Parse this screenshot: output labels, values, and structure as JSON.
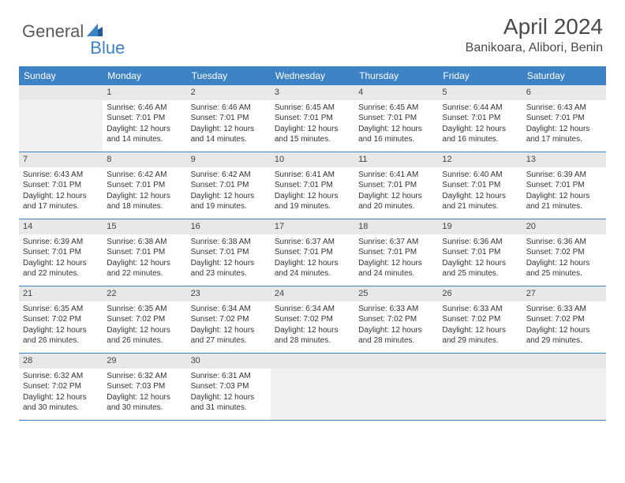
{
  "logo": {
    "word1": "General",
    "word2": "Blue"
  },
  "title": "April 2024",
  "location": "Banikoara, Alibori, Benin",
  "weekdays": [
    "Sunday",
    "Monday",
    "Tuesday",
    "Wednesday",
    "Thursday",
    "Friday",
    "Saturday"
  ],
  "colors": {
    "header_bg": "#3d82c4",
    "header_text": "#ffffff",
    "daynum_bg": "#e8e8e8",
    "border": "#3d82c4",
    "logo_accent": "#3d82c4"
  },
  "weeks": [
    [
      {
        "day": "",
        "empty": true
      },
      {
        "day": "1",
        "sunrise": "Sunrise: 6:46 AM",
        "sunset": "Sunset: 7:01 PM",
        "daylight": "Daylight: 12 hours and 14 minutes."
      },
      {
        "day": "2",
        "sunrise": "Sunrise: 6:46 AM",
        "sunset": "Sunset: 7:01 PM",
        "daylight": "Daylight: 12 hours and 14 minutes."
      },
      {
        "day": "3",
        "sunrise": "Sunrise: 6:45 AM",
        "sunset": "Sunset: 7:01 PM",
        "daylight": "Daylight: 12 hours and 15 minutes."
      },
      {
        "day": "4",
        "sunrise": "Sunrise: 6:45 AM",
        "sunset": "Sunset: 7:01 PM",
        "daylight": "Daylight: 12 hours and 16 minutes."
      },
      {
        "day": "5",
        "sunrise": "Sunrise: 6:44 AM",
        "sunset": "Sunset: 7:01 PM",
        "daylight": "Daylight: 12 hours and 16 minutes."
      },
      {
        "day": "6",
        "sunrise": "Sunrise: 6:43 AM",
        "sunset": "Sunset: 7:01 PM",
        "daylight": "Daylight: 12 hours and 17 minutes."
      }
    ],
    [
      {
        "day": "7",
        "sunrise": "Sunrise: 6:43 AM",
        "sunset": "Sunset: 7:01 PM",
        "daylight": "Daylight: 12 hours and 17 minutes."
      },
      {
        "day": "8",
        "sunrise": "Sunrise: 6:42 AM",
        "sunset": "Sunset: 7:01 PM",
        "daylight": "Daylight: 12 hours and 18 minutes."
      },
      {
        "day": "9",
        "sunrise": "Sunrise: 6:42 AM",
        "sunset": "Sunset: 7:01 PM",
        "daylight": "Daylight: 12 hours and 19 minutes."
      },
      {
        "day": "10",
        "sunrise": "Sunrise: 6:41 AM",
        "sunset": "Sunset: 7:01 PM",
        "daylight": "Daylight: 12 hours and 19 minutes."
      },
      {
        "day": "11",
        "sunrise": "Sunrise: 6:41 AM",
        "sunset": "Sunset: 7:01 PM",
        "daylight": "Daylight: 12 hours and 20 minutes."
      },
      {
        "day": "12",
        "sunrise": "Sunrise: 6:40 AM",
        "sunset": "Sunset: 7:01 PM",
        "daylight": "Daylight: 12 hours and 21 minutes."
      },
      {
        "day": "13",
        "sunrise": "Sunrise: 6:39 AM",
        "sunset": "Sunset: 7:01 PM",
        "daylight": "Daylight: 12 hours and 21 minutes."
      }
    ],
    [
      {
        "day": "14",
        "sunrise": "Sunrise: 6:39 AM",
        "sunset": "Sunset: 7:01 PM",
        "daylight": "Daylight: 12 hours and 22 minutes."
      },
      {
        "day": "15",
        "sunrise": "Sunrise: 6:38 AM",
        "sunset": "Sunset: 7:01 PM",
        "daylight": "Daylight: 12 hours and 22 minutes."
      },
      {
        "day": "16",
        "sunrise": "Sunrise: 6:38 AM",
        "sunset": "Sunset: 7:01 PM",
        "daylight": "Daylight: 12 hours and 23 minutes."
      },
      {
        "day": "17",
        "sunrise": "Sunrise: 6:37 AM",
        "sunset": "Sunset: 7:01 PM",
        "daylight": "Daylight: 12 hours and 24 minutes."
      },
      {
        "day": "18",
        "sunrise": "Sunrise: 6:37 AM",
        "sunset": "Sunset: 7:01 PM",
        "daylight": "Daylight: 12 hours and 24 minutes."
      },
      {
        "day": "19",
        "sunrise": "Sunrise: 6:36 AM",
        "sunset": "Sunset: 7:01 PM",
        "daylight": "Daylight: 12 hours and 25 minutes."
      },
      {
        "day": "20",
        "sunrise": "Sunrise: 6:36 AM",
        "sunset": "Sunset: 7:02 PM",
        "daylight": "Daylight: 12 hours and 25 minutes."
      }
    ],
    [
      {
        "day": "21",
        "sunrise": "Sunrise: 6:35 AM",
        "sunset": "Sunset: 7:02 PM",
        "daylight": "Daylight: 12 hours and 26 minutes."
      },
      {
        "day": "22",
        "sunrise": "Sunrise: 6:35 AM",
        "sunset": "Sunset: 7:02 PM",
        "daylight": "Daylight: 12 hours and 26 minutes."
      },
      {
        "day": "23",
        "sunrise": "Sunrise: 6:34 AM",
        "sunset": "Sunset: 7:02 PM",
        "daylight": "Daylight: 12 hours and 27 minutes."
      },
      {
        "day": "24",
        "sunrise": "Sunrise: 6:34 AM",
        "sunset": "Sunset: 7:02 PM",
        "daylight": "Daylight: 12 hours and 28 minutes."
      },
      {
        "day": "25",
        "sunrise": "Sunrise: 6:33 AM",
        "sunset": "Sunset: 7:02 PM",
        "daylight": "Daylight: 12 hours and 28 minutes."
      },
      {
        "day": "26",
        "sunrise": "Sunrise: 6:33 AM",
        "sunset": "Sunset: 7:02 PM",
        "daylight": "Daylight: 12 hours and 29 minutes."
      },
      {
        "day": "27",
        "sunrise": "Sunrise: 6:33 AM",
        "sunset": "Sunset: 7:02 PM",
        "daylight": "Daylight: 12 hours and 29 minutes."
      }
    ],
    [
      {
        "day": "28",
        "sunrise": "Sunrise: 6:32 AM",
        "sunset": "Sunset: 7:02 PM",
        "daylight": "Daylight: 12 hours and 30 minutes."
      },
      {
        "day": "29",
        "sunrise": "Sunrise: 6:32 AM",
        "sunset": "Sunset: 7:03 PM",
        "daylight": "Daylight: 12 hours and 30 minutes."
      },
      {
        "day": "30",
        "sunrise": "Sunrise: 6:31 AM",
        "sunset": "Sunset: 7:03 PM",
        "daylight": "Daylight: 12 hours and 31 minutes."
      },
      {
        "day": "",
        "empty": true
      },
      {
        "day": "",
        "empty": true
      },
      {
        "day": "",
        "empty": true
      },
      {
        "day": "",
        "empty": true
      }
    ]
  ]
}
